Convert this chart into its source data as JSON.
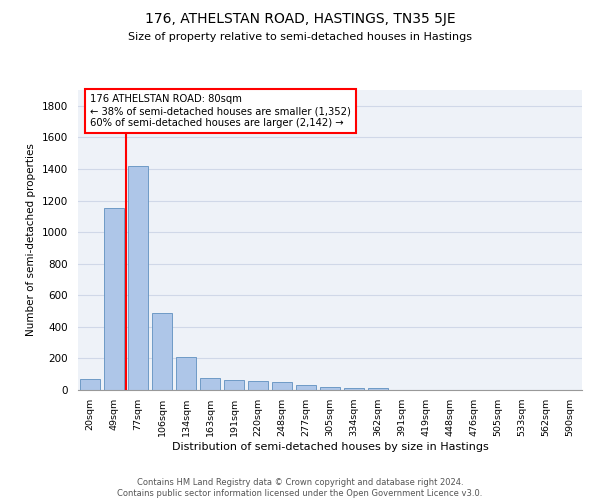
{
  "title": "176, ATHELSTAN ROAD, HASTINGS, TN35 5JE",
  "subtitle": "Size of property relative to semi-detached houses in Hastings",
  "xlabel": "Distribution of semi-detached houses by size in Hastings",
  "ylabel": "Number of semi-detached properties",
  "footer_line1": "Contains HM Land Registry data © Crown copyright and database right 2024.",
  "footer_line2": "Contains public sector information licensed under the Open Government Licence v3.0.",
  "bar_labels": [
    "20sqm",
    "49sqm",
    "77sqm",
    "106sqm",
    "134sqm",
    "163sqm",
    "191sqm",
    "220sqm",
    "248sqm",
    "277sqm",
    "305sqm",
    "334sqm",
    "362sqm",
    "391sqm",
    "419sqm",
    "448sqm",
    "476sqm",
    "505sqm",
    "533sqm",
    "562sqm",
    "590sqm"
  ],
  "bar_values": [
    70,
    1155,
    1420,
    490,
    210,
    75,
    63,
    60,
    48,
    32,
    20,
    12,
    10,
    0,
    0,
    0,
    0,
    0,
    0,
    0,
    0
  ],
  "bar_color": "#aec6e8",
  "bar_edgecolor": "#6090c0",
  "bg_color": "#eef2f8",
  "grid_color": "#d0d8e8",
  "annotation_text_line1": "176 ATHELSTAN ROAD: 80sqm",
  "annotation_text_line2": "← 38% of semi-detached houses are smaller (1,352)",
  "annotation_text_line3": "60% of semi-detached houses are larger (2,142) →",
  "ylim": [
    0,
    1900
  ],
  "yticks": [
    0,
    200,
    400,
    600,
    800,
    1000,
    1200,
    1400,
    1600,
    1800
  ]
}
